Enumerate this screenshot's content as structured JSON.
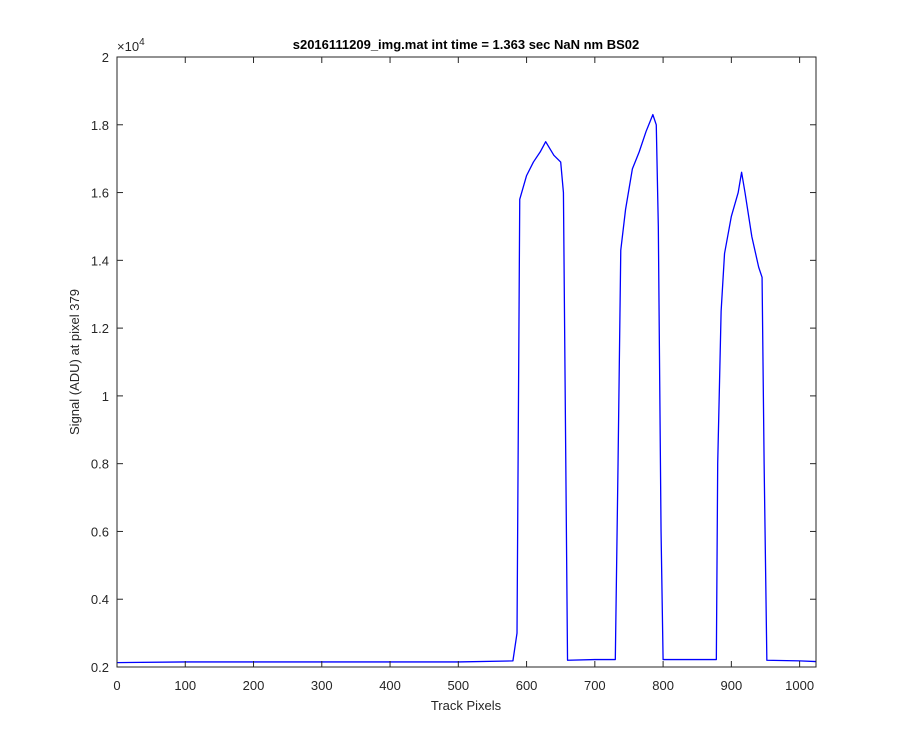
{
  "chart_data": {
    "type": "line",
    "title": "s2016111209_img.mat int time = 1.363 sec  NaN nm BS02",
    "xlabel": "Track Pixels",
    "ylabel": "Signal (ADU) at pixel 379",
    "y_exponent_label": "×10",
    "y_exponent_power": "4",
    "xlim": [
      0,
      1024
    ],
    "ylim": [
      0.2,
      2.0
    ],
    "y_scale_factor": 10000,
    "grid": false,
    "xticks": [
      0,
      100,
      200,
      300,
      400,
      500,
      600,
      700,
      800,
      900,
      1000
    ],
    "xtick_labels": [
      "0",
      "100",
      "200",
      "300",
      "400",
      "500",
      "600",
      "700",
      "800",
      "900",
      "1000"
    ],
    "yticks": [
      0.2,
      0.4,
      0.6,
      0.8,
      1.0,
      1.2,
      1.4,
      1.6,
      1.8,
      2.0
    ],
    "ytick_labels": [
      "0.2",
      "0.4",
      "0.6",
      "0.8",
      "1",
      "1.2",
      "1.4",
      "1.6",
      "1.8",
      "2"
    ],
    "series": [
      {
        "color": "#0000ff",
        "x": [
          0,
          100,
          200,
          300,
          400,
          500,
          580,
          586,
          590,
          600,
          610,
          620,
          628,
          640,
          650,
          654,
          660,
          700,
          730,
          734,
          738,
          745,
          755,
          765,
          775,
          785,
          790,
          793,
          797,
          800,
          840,
          878,
          880,
          885,
          890,
          900,
          910,
          915,
          920,
          930,
          940,
          945,
          948,
          952,
          1000,
          1024
        ],
        "y": [
          0.213,
          0.215,
          0.215,
          0.215,
          0.215,
          0.215,
          0.218,
          0.3,
          1.58,
          1.65,
          1.69,
          1.72,
          1.75,
          1.71,
          1.69,
          1.6,
          0.22,
          0.222,
          0.222,
          0.8,
          1.43,
          1.55,
          1.67,
          1.72,
          1.78,
          1.83,
          1.8,
          1.5,
          0.6,
          0.222,
          0.222,
          0.222,
          0.8,
          1.25,
          1.42,
          1.53,
          1.6,
          1.66,
          1.6,
          1.47,
          1.38,
          1.35,
          0.8,
          0.22,
          0.218,
          0.216
        ]
      }
    ]
  }
}
